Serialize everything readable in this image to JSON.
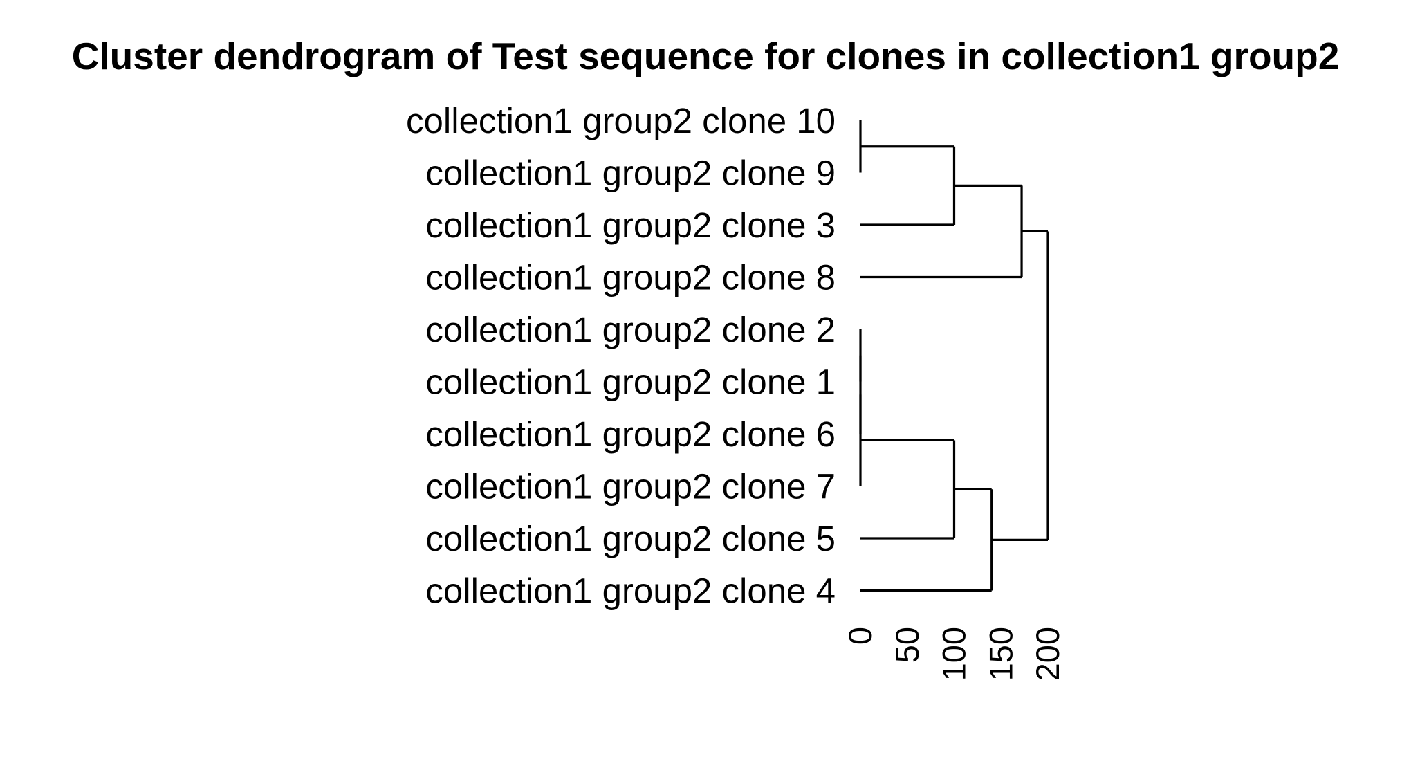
{
  "chart_data": {
    "type": "dendrogram",
    "title": "Cluster dendrogram of Test sequence for clones in collection1 group2",
    "xlabel": "",
    "ylabel": "",
    "orientation": "horizontal",
    "height_range": [
      0,
      200
    ],
    "height_ticks": [
      0,
      50,
      100,
      150,
      200
    ],
    "tick_labels": [
      "0",
      "50",
      "100",
      "150",
      "200"
    ],
    "leaves": [
      "collection1 group2 clone 10",
      "collection1 group2 clone 9",
      "collection1 group2 clone 3",
      "collection1 group2 clone 8",
      "collection1 group2 clone 2",
      "collection1 group2 clone 1",
      "collection1 group2 clone 6",
      "collection1 group2 clone 7",
      "collection1 group2 clone 5",
      "collection1 group2 clone 4"
    ],
    "merges": [
      {
        "id": "m1",
        "children": [
          "collection1 group2 clone 10",
          "collection1 group2 clone 9"
        ],
        "height": 0
      },
      {
        "id": "m2",
        "children": [
          "collection1 group2 clone 2",
          "collection1 group2 clone 1"
        ],
        "height": 0
      },
      {
        "id": "m3",
        "children": [
          "m2",
          "collection1 group2 clone 6"
        ],
        "height": 0
      },
      {
        "id": "m4",
        "children": [
          "m3",
          "collection1 group2 clone 7"
        ],
        "height": 0
      },
      {
        "id": "m5",
        "children": [
          "m1",
          "collection1 group2 clone 3"
        ],
        "height": 100
      },
      {
        "id": "m6",
        "children": [
          "m4",
          "collection1 group2 clone 5"
        ],
        "height": 100
      },
      {
        "id": "m7",
        "children": [
          "m6",
          "collection1 group2 clone 4"
        ],
        "height": 140
      },
      {
        "id": "m8",
        "children": [
          "m5",
          "collection1 group2 clone 8"
        ],
        "height": 172
      },
      {
        "id": "m9",
        "children": [
          "m8",
          "m7"
        ],
        "height": 200
      }
    ],
    "grid": false,
    "legend": "none"
  }
}
